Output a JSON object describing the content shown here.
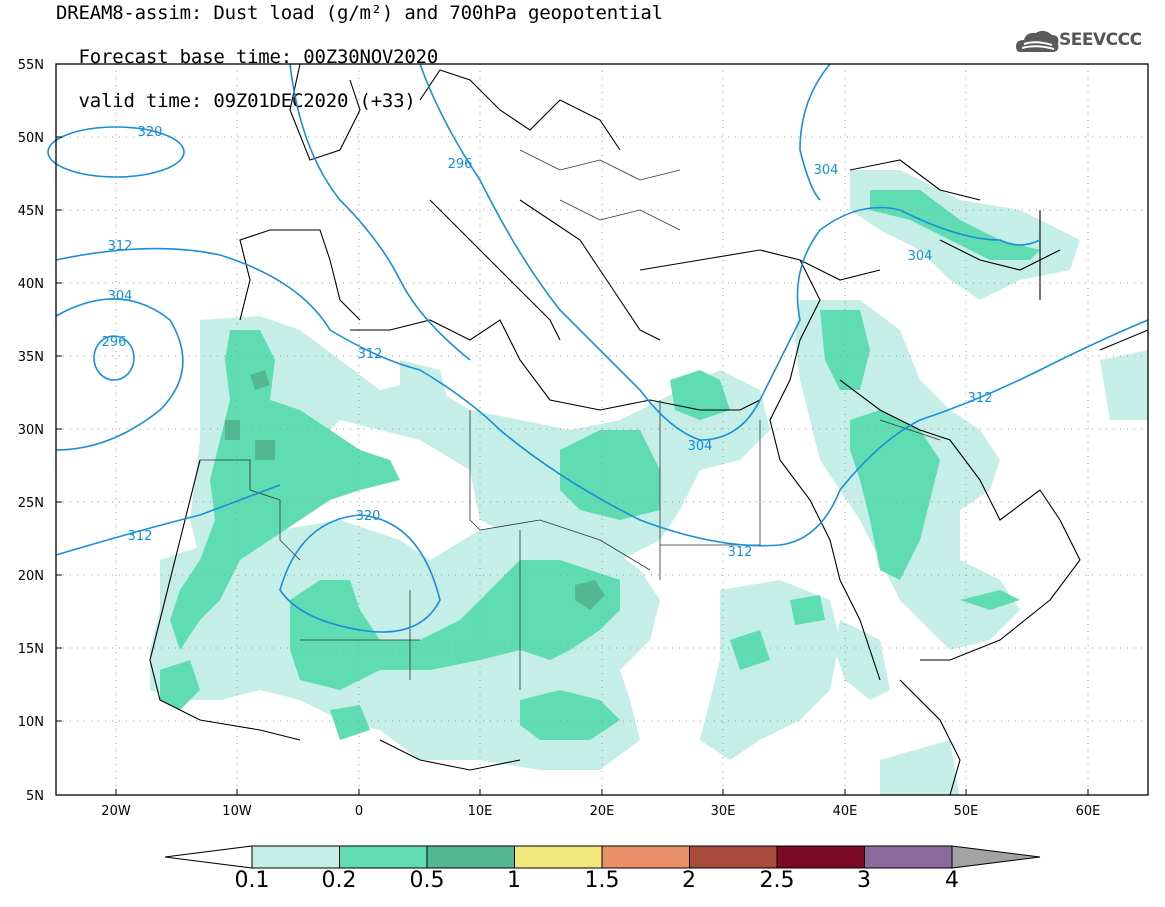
{
  "title_line1": "DREAM8-assim: Dust load (g/m²) and 700hPa geopotential",
  "title_line2_base": "Forecast base time: 00Z30NOV2020",
  "title_line2_valid": "valid time: 09Z01DEC2020 (+33)",
  "logo_text": "SEEVCCC",
  "colors": {
    "coast": "#000000",
    "contour": "#1a8fd8",
    "level_0_1": "#c4eee6",
    "level_0_2": "#5fdcb2",
    "level_0_5": "#53b892",
    "level_1": "#f2e77a",
    "level_1_5": "#e9906a",
    "level_2": "#a84a3c",
    "level_2_5": "#7c0a26",
    "level_3": "#8c6a9e",
    "level_4": "#a3a3a3"
  },
  "lat_ticks": [
    "55N",
    "50N",
    "45N",
    "40N",
    "35N",
    "30N",
    "25N",
    "20N",
    "15N",
    "10N",
    "5N"
  ],
  "lon_ticks": [
    "20W",
    "10W",
    "0",
    "10E",
    "20E",
    "30E",
    "40E",
    "50E",
    "60E"
  ],
  "contour_labels": [
    "320",
    "296",
    "312",
    "304",
    "296",
    "312",
    "304",
    "312",
    "304",
    "312",
    "320",
    "312",
    "304"
  ],
  "colorbar": {
    "labels": [
      "0.1",
      "0.2",
      "0.5",
      "1",
      "1.5",
      "2",
      "2.5",
      "3",
      "4"
    ],
    "colors": [
      "#c4eee6",
      "#5fdcb2",
      "#53b892",
      "#f2e77a",
      "#e9906a",
      "#a84a3c",
      "#7c0a26",
      "#8c6a9e"
    ]
  }
}
